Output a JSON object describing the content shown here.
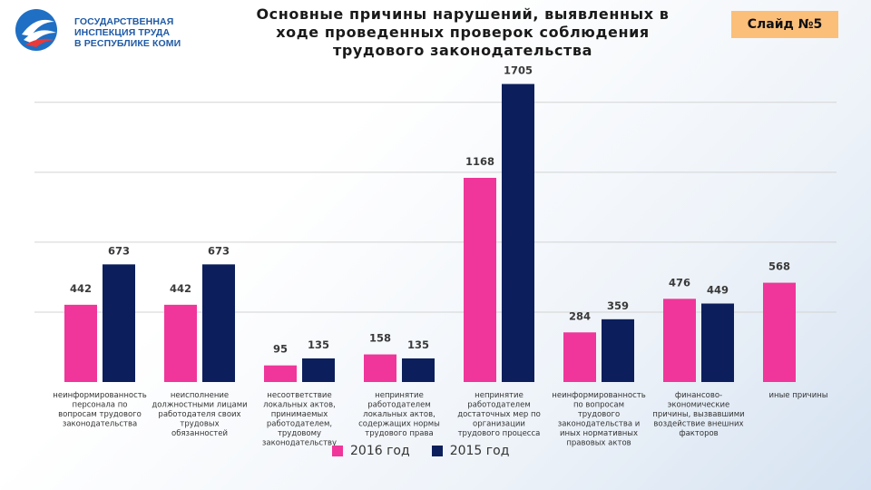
{
  "header": {
    "org_line1": "ГОСУДАРСТВЕННАЯ",
    "org_line2": "ИНСПЕКЦИЯ ТРУДА",
    "org_line3": "В РЕСПУБЛИКЕ КОМИ",
    "slide_label": "Слайд №5",
    "title_line1": "Основные причины нарушений, выявленных в",
    "title_line2": "ходе проведенных проверок соблюдения",
    "title_line3": "трудового законодательства"
  },
  "chart_data": {
    "type": "bar",
    "title": "Основные причины нарушений, выявленных в ходе проведенных проверок соблюдения трудового законодательства",
    "xlabel": "",
    "ylabel": "",
    "ylim": [
      0,
      1900
    ],
    "grid": true,
    "legend_position": "bottom",
    "categories": [
      [
        "неинформированность",
        "персонала по",
        "вопросам трудового",
        "законодательства"
      ],
      [
        "неисполнение",
        "должностными лицами",
        "работодателя своих",
        "трудовых",
        "обязанностей"
      ],
      [
        "несоответствие",
        "локальных актов,",
        "принимаемых",
        "работодателем,",
        "трудовому",
        "законодательству"
      ],
      [
        "непринятие",
        "работодателем",
        "локальных актов,",
        "содержащих нормы",
        "трудового права"
      ],
      [
        "непринятие",
        "работодателем",
        "достаточных мер по",
        "организации",
        "трудового процесса"
      ],
      [
        "неинформированность",
        "по вопросам",
        "трудового",
        "законодательства и",
        "иных нормативных",
        "правовых актов"
      ],
      [
        "финансово-",
        "экономические",
        "причины, вызвавшими",
        "воздействие внешних",
        "факторов"
      ],
      [
        "иные причины"
      ]
    ],
    "series": [
      {
        "name": "2016 год",
        "color": "#f0369a",
        "values": [
          442,
          442,
          95,
          158,
          1168,
          284,
          476,
          568
        ]
      },
      {
        "name": "2015 год",
        "color": "#0c1f5c",
        "values": [
          673,
          673,
          135,
          135,
          1705,
          359,
          449,
          null
        ]
      }
    ]
  }
}
